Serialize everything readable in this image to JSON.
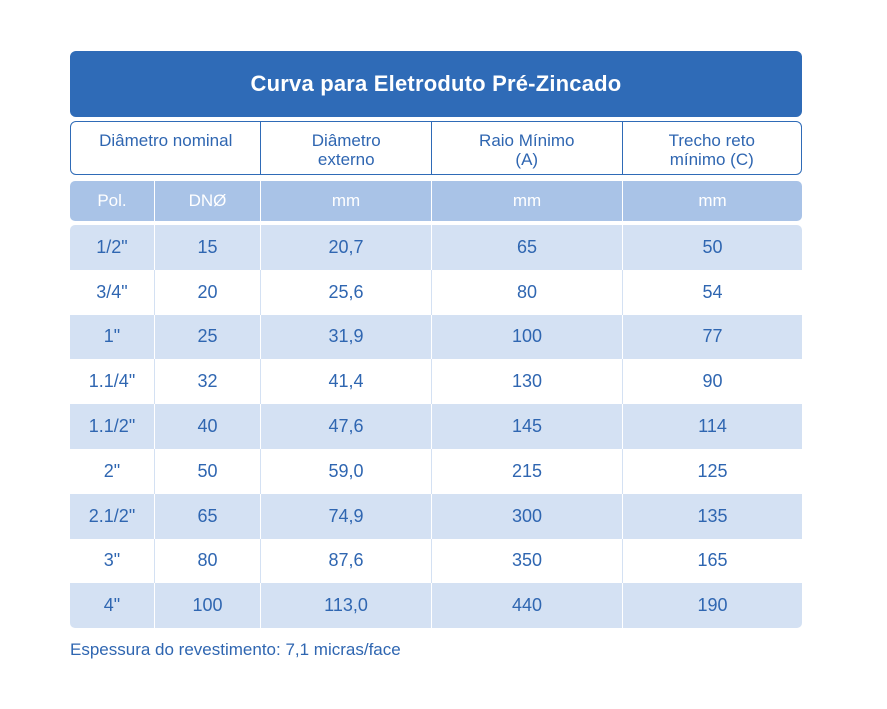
{
  "title": "Curva para Eletroduto Pré-Zincado",
  "headers": {
    "nominal": "Diâmetro nominal",
    "externo": "Diâmetro\nexterno",
    "raio": "Raio Mínimo\n(A)",
    "trecho": "Trecho reto\nmínimo (C)"
  },
  "units": {
    "pol": "Pol.",
    "dn": "DNØ",
    "externo": "mm",
    "raio": "mm",
    "trecho": "mm"
  },
  "rows": [
    {
      "pol": "1/2\"",
      "dn": "15",
      "externo": "20,7",
      "raio": "65",
      "trecho": "50"
    },
    {
      "pol": "3/4\"",
      "dn": "20",
      "externo": "25,6",
      "raio": "80",
      "trecho": "54"
    },
    {
      "pol": "1\"",
      "dn": "25",
      "externo": "31,9",
      "raio": "100",
      "trecho": "77"
    },
    {
      "pol": "1.1/4\"",
      "dn": "32",
      "externo": "41,4",
      "raio": "130",
      "trecho": "90"
    },
    {
      "pol": "1.1/2\"",
      "dn": "40",
      "externo": "47,6",
      "raio": "145",
      "trecho": "114"
    },
    {
      "pol": "2\"",
      "dn": "50",
      "externo": "59,0",
      "raio": "215",
      "trecho": "125"
    },
    {
      "pol": "2.1/2\"",
      "dn": "65",
      "externo": "74,9",
      "raio": "300",
      "trecho": "135"
    },
    {
      "pol": "3\"",
      "dn": "80",
      "externo": "87,6",
      "raio": "350",
      "trecho": "165"
    },
    {
      "pol": "4\"",
      "dn": "100",
      "externo": "113,0",
      "raio": "440",
      "trecho": "190"
    }
  ],
  "note": "Espessura do revestimento: 7,1 micras/face",
  "colors": {
    "title_bg": "#2f6bb7",
    "units_bg": "#a9c3e7",
    "row_alt_bg": "#d4e1f3",
    "text": "#2f66b1"
  }
}
